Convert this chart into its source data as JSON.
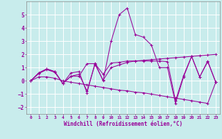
{
  "xlabel": "Windchill (Refroidissement éolien,°C)",
  "background_color": "#c8ecec",
  "grid_color": "#ffffff",
  "line_color": "#990099",
  "xlim": [
    -0.5,
    23.5
  ],
  "ylim": [
    -2.5,
    6.0
  ],
  "xticks": [
    0,
    1,
    2,
    3,
    4,
    5,
    6,
    7,
    8,
    9,
    10,
    11,
    12,
    13,
    14,
    15,
    16,
    17,
    18,
    19,
    20,
    21,
    22,
    23
  ],
  "yticks": [
    -2,
    -1,
    0,
    1,
    2,
    3,
    4,
    5
  ],
  "series": [
    [
      0.0,
      0.6,
      0.9,
      0.7,
      -0.2,
      0.6,
      0.7,
      -0.9,
      1.35,
      0.0,
      3.0,
      5.0,
      5.5,
      3.5,
      3.3,
      2.7,
      1.0,
      1.0,
      -1.7,
      0.3,
      1.85,
      0.3,
      1.5,
      -0.1
    ],
    [
      0.0,
      0.55,
      0.85,
      0.65,
      -0.2,
      0.35,
      0.5,
      -0.75,
      1.25,
      0.05,
      1.0,
      1.2,
      1.4,
      1.5,
      1.5,
      1.5,
      1.5,
      1.45,
      -1.5,
      0.4,
      1.85,
      0.3,
      1.45,
      -0.1
    ],
    [
      0.0,
      0.6,
      0.9,
      0.7,
      -0.2,
      0.35,
      0.35,
      1.3,
      1.3,
      0.5,
      1.35,
      1.4,
      1.5,
      1.5,
      1.55,
      1.6,
      1.65,
      1.7,
      1.75,
      1.8,
      1.85,
      1.9,
      1.95,
      2.0
    ],
    [
      0.0,
      0.3,
      0.3,
      0.2,
      0.0,
      -0.1,
      -0.2,
      -0.3,
      -0.4,
      -0.5,
      -0.6,
      -0.7,
      -0.75,
      -0.85,
      -0.9,
      -1.0,
      -1.1,
      -1.2,
      -1.3,
      -1.4,
      -1.5,
      -1.6,
      -1.7,
      -0.1
    ]
  ]
}
